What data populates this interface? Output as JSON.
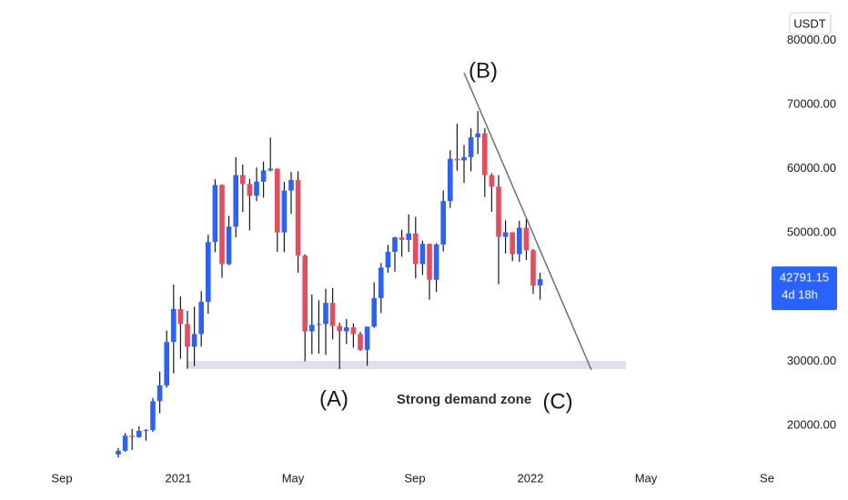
{
  "chart_data": {
    "type": "candlestick",
    "currency": "USDT",
    "countdown": "4d 18h",
    "annotations": [
      "(A)",
      "(B)",
      "(C)",
      "Strong demand zone"
    ],
    "x_labels": [
      "Sep",
      "2021",
      "May",
      "Sep",
      "2022",
      "May",
      "Se"
    ],
    "ylim": [
      14760,
      86290
    ],
    "yticks": [
      {
        "value": 20000,
        "label": "20000.00"
      },
      {
        "value": 30000,
        "label": "30000.00"
      },
      {
        "value": 50000,
        "label": "50000.00"
      },
      {
        "value": 60000,
        "label": "60000.00"
      },
      {
        "value": 70000,
        "label": "70000.00"
      },
      {
        "value": 80000,
        "label": "80000.00"
      }
    ],
    "up_color": "#2962ff",
    "down_color": "#e84b5b",
    "open": [
      15480,
      16050,
      18400,
      18180,
      19150,
      19280,
      23780,
      26250,
      33000,
      38150,
      35800,
      32260,
      34250,
      39250,
      48580,
      57470,
      45140,
      50970,
      59010,
      57620,
      55790,
      57990,
      59750,
      60010,
      50080,
      56600,
      58250,
      46460,
      34650,
      35680,
      35800,
      39100,
      35510,
      34680,
      35280,
      34240,
      31780,
      35400,
      39850,
      44600,
      47060,
      49300,
      48900,
      49920,
      45150,
      48300,
      42700,
      48200,
      54960,
      61550,
      61300,
      61800,
      64900,
      65500,
      59000,
      57200,
      49400,
      50100,
      46700,
      50800,
      47300,
      41800
    ],
    "high": [
      16480,
      18800,
      19480,
      19900,
      19420,
      24300,
      28400,
      34800,
      41950,
      40100,
      37850,
      38500,
      40950,
      49700,
      58350,
      57550,
      52650,
      61790,
      60650,
      58420,
      60200,
      61100,
      64850,
      60050,
      57950,
      59500,
      59600,
      46650,
      40400,
      39500,
      41300,
      41400,
      36000,
      36600,
      35900,
      34600,
      35300,
      42300,
      45300,
      48150,
      49400,
      50500,
      52900,
      52500,
      48800,
      48300,
      48400,
      56600,
      62900,
      67000,
      63700,
      66300,
      69000,
      66300,
      59300,
      59000,
      51950,
      50100,
      51900,
      52100,
      47500,
      43800
    ],
    "low": [
      15000,
      15900,
      16200,
      18100,
      17620,
      19000,
      21900,
      25900,
      28100,
      30400,
      28850,
      29250,
      32300,
      37400,
      47000,
      43000,
      44950,
      49300,
      53250,
      50400,
      54950,
      55500,
      59550,
      47050,
      47000,
      52950,
      43800,
      30000,
      31100,
      31200,
      31000,
      33400,
      28800,
      32700,
      32100,
      31600,
      29300,
      35200,
      37500,
      43800,
      43950,
      46300,
      47050,
      42900,
      43450,
      39600,
      40800,
      47100,
      53900,
      59700,
      57800,
      59600,
      62300,
      55600,
      53300,
      42000,
      46800,
      45600,
      45500,
      45800,
      40500,
      39600
    ],
    "close": [
      16050,
      18400,
      18180,
      19150,
      19280,
      23780,
      26250,
      33000,
      38150,
      35800,
      32260,
      34250,
      39250,
      48580,
      57470,
      45140,
      50970,
      59010,
      57620,
      55790,
      57990,
      59750,
      60010,
      50080,
      56600,
      58250,
      46460,
      34650,
      35680,
      35800,
      39100,
      35510,
      34680,
      35280,
      34240,
      31780,
      35400,
      39850,
      44600,
      47060,
      49300,
      48900,
      49920,
      45150,
      48300,
      42700,
      48200,
      54960,
      61550,
      61300,
      61800,
      64900,
      65500,
      59000,
      57200,
      49400,
      50100,
      46700,
      50800,
      47300,
      41800,
      42791.15
    ]
  }
}
